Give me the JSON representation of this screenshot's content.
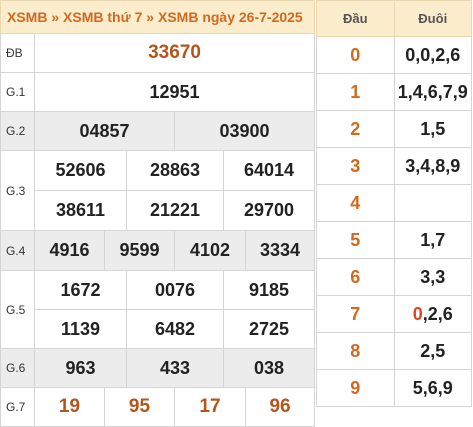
{
  "header": {
    "crumb1": "XSMB",
    "sep1": "»",
    "crumb2": "XSMB thứ 7",
    "sep2": "»",
    "crumb3": "XSMB ngày 26-7-2025"
  },
  "prizes": {
    "db": {
      "label": "ĐB",
      "values": [
        "33670"
      ]
    },
    "g1": {
      "label": "G.1",
      "values": [
        "12951"
      ]
    },
    "g2": {
      "label": "G.2",
      "values": [
        "04857",
        "03900"
      ]
    },
    "g3": {
      "label": "G.3",
      "values": [
        "52606",
        "28863",
        "64014",
        "38611",
        "21221",
        "29700"
      ]
    },
    "g4": {
      "label": "G.4",
      "values": [
        "4916",
        "9599",
        "4102",
        "3334"
      ]
    },
    "g5": {
      "label": "G.5",
      "values": [
        "1672",
        "0076",
        "9185",
        "1139",
        "6482",
        "2725"
      ]
    },
    "g6": {
      "label": "G.6",
      "values": [
        "963",
        "433",
        "038"
      ]
    },
    "g7": {
      "label": "G.7",
      "values": [
        "19",
        "95",
        "17",
        "96"
      ]
    }
  },
  "loto": {
    "head_label": "Đầu",
    "tail_label": "Đuôi",
    "rows": [
      {
        "head": "0",
        "tail": "0,0,2,6"
      },
      {
        "head": "1",
        "tail": "1,4,6,7,9"
      },
      {
        "head": "2",
        "tail": "1,5"
      },
      {
        "head": "3",
        "tail": "3,4,8,9"
      },
      {
        "head": "4",
        "tail": ""
      },
      {
        "head": "5",
        "tail": "1,7"
      },
      {
        "head": "6",
        "tail": "3,3"
      },
      {
        "head": "7",
        "tail_hl": "0",
        "tail_rest": ",2,6"
      },
      {
        "head": "8",
        "tail": "2,5"
      },
      {
        "head": "9",
        "tail": "5,6,9"
      }
    ]
  },
  "colors": {
    "header_bg": "#fbeccc",
    "accent": "#d2691e",
    "row_gray": "#ececec",
    "highlight": "#e1451f"
  }
}
